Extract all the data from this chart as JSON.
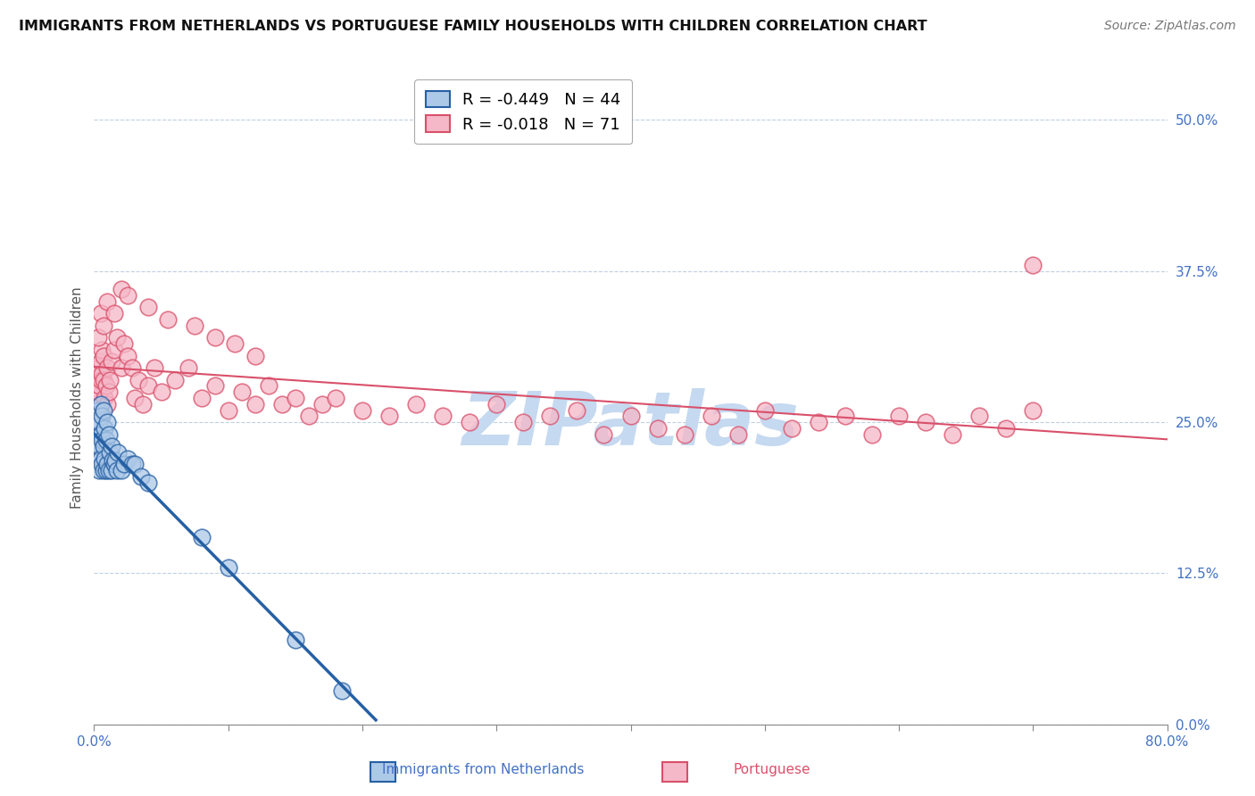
{
  "title": "IMMIGRANTS FROM NETHERLANDS VS PORTUGUESE FAMILY HOUSEHOLDS WITH CHILDREN CORRELATION CHART",
  "source": "Source: ZipAtlas.com",
  "ylabel": "Family Households with Children",
  "legend_label_blue": "Immigrants from Netherlands",
  "legend_label_pink": "Portuguese",
  "r_blue": -0.449,
  "n_blue": 44,
  "r_pink": -0.018,
  "n_pink": 71,
  "xlim": [
    0.0,
    0.8
  ],
  "ylim": [
    0.0,
    0.54
  ],
  "color_blue": "#adc9e8",
  "color_blue_line": "#2660a4",
  "color_pink": "#f5b8c8",
  "color_pink_line": "#d9506a",
  "watermark": "ZIPatlas",
  "watermark_color": "#c5d9f0",
  "blue_scatter_x": [
    0.002,
    0.002,
    0.003,
    0.003,
    0.003,
    0.004,
    0.004,
    0.004,
    0.005,
    0.005,
    0.005,
    0.006,
    0.006,
    0.006,
    0.007,
    0.007,
    0.007,
    0.008,
    0.008,
    0.009,
    0.009,
    0.01,
    0.01,
    0.011,
    0.011,
    0.012,
    0.013,
    0.013,
    0.014,
    0.015,
    0.016,
    0.017,
    0.018,
    0.02,
    0.022,
    0.025,
    0.028,
    0.03,
    0.035,
    0.04,
    0.08,
    0.1,
    0.15,
    0.185
  ],
  "blue_scatter_y": [
    0.23,
    0.25,
    0.22,
    0.24,
    0.26,
    0.21,
    0.23,
    0.25,
    0.22,
    0.24,
    0.265,
    0.215,
    0.235,
    0.255,
    0.21,
    0.23,
    0.26,
    0.22,
    0.245,
    0.21,
    0.235,
    0.215,
    0.25,
    0.21,
    0.24,
    0.225,
    0.21,
    0.23,
    0.218,
    0.215,
    0.218,
    0.21,
    0.225,
    0.21,
    0.215,
    0.22,
    0.215,
    0.215,
    0.205,
    0.2,
    0.155,
    0.13,
    0.07,
    0.028
  ],
  "pink_scatter_x": [
    0.001,
    0.002,
    0.002,
    0.003,
    0.003,
    0.004,
    0.004,
    0.005,
    0.005,
    0.006,
    0.006,
    0.007,
    0.007,
    0.008,
    0.009,
    0.01,
    0.01,
    0.011,
    0.012,
    0.013,
    0.015,
    0.017,
    0.02,
    0.022,
    0.025,
    0.028,
    0.03,
    0.033,
    0.036,
    0.04,
    0.045,
    0.05,
    0.06,
    0.07,
    0.08,
    0.09,
    0.1,
    0.11,
    0.12,
    0.13,
    0.14,
    0.15,
    0.16,
    0.17,
    0.18,
    0.2,
    0.22,
    0.24,
    0.26,
    0.28,
    0.3,
    0.32,
    0.34,
    0.36,
    0.38,
    0.4,
    0.42,
    0.44,
    0.46,
    0.48,
    0.5,
    0.52,
    0.54,
    0.56,
    0.58,
    0.6,
    0.62,
    0.64,
    0.66,
    0.68,
    0.7
  ],
  "pink_scatter_y": [
    0.265,
    0.27,
    0.285,
    0.275,
    0.29,
    0.28,
    0.295,
    0.285,
    0.3,
    0.29,
    0.31,
    0.285,
    0.305,
    0.27,
    0.28,
    0.265,
    0.295,
    0.275,
    0.285,
    0.3,
    0.31,
    0.32,
    0.295,
    0.315,
    0.305,
    0.295,
    0.27,
    0.285,
    0.265,
    0.28,
    0.295,
    0.275,
    0.285,
    0.295,
    0.27,
    0.28,
    0.26,
    0.275,
    0.265,
    0.28,
    0.265,
    0.27,
    0.255,
    0.265,
    0.27,
    0.26,
    0.255,
    0.265,
    0.255,
    0.25,
    0.265,
    0.25,
    0.255,
    0.26,
    0.24,
    0.255,
    0.245,
    0.24,
    0.255,
    0.24,
    0.26,
    0.245,
    0.25,
    0.255,
    0.24,
    0.255,
    0.25,
    0.24,
    0.255,
    0.245,
    0.26
  ],
  "pink_scatter_extra_x": [
    0.003,
    0.005,
    0.007,
    0.01,
    0.015,
    0.02,
    0.025,
    0.04,
    0.055,
    0.075,
    0.09,
    0.105,
    0.12,
    0.7
  ],
  "pink_scatter_extra_y": [
    0.32,
    0.34,
    0.33,
    0.35,
    0.34,
    0.36,
    0.355,
    0.345,
    0.335,
    0.33,
    0.32,
    0.315,
    0.305,
    0.38
  ]
}
